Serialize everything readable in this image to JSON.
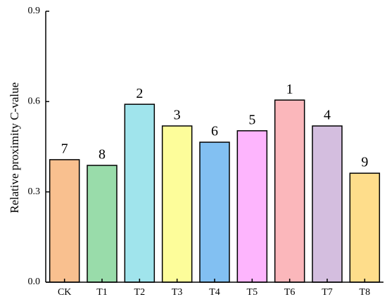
{
  "chart_data": {
    "type": "bar",
    "y_label": "Relative proximity C-value",
    "categories": [
      "CK",
      "T1",
      "T2",
      "T3",
      "T4",
      "T5",
      "T6",
      "T7",
      "T8"
    ],
    "values": [
      0.407,
      0.388,
      0.591,
      0.519,
      0.465,
      0.503,
      0.605,
      0.519,
      0.362
    ],
    "ranks": [
      7,
      8,
      2,
      3,
      6,
      5,
      1,
      4,
      9
    ],
    "colors": [
      "#f9c08f",
      "#99dcaa",
      "#a0e4ec",
      "#fdfd9a",
      "#82c0f2",
      "#fdb5fd",
      "#fbb7bb",
      "#d4bedf",
      "#fedd8b"
    ],
    "ylim": [
      0,
      0.9
    ],
    "yticks": [
      {
        "value": 0,
        "label": "0.0"
      },
      0.3,
      0.6,
      0.9
    ]
  }
}
